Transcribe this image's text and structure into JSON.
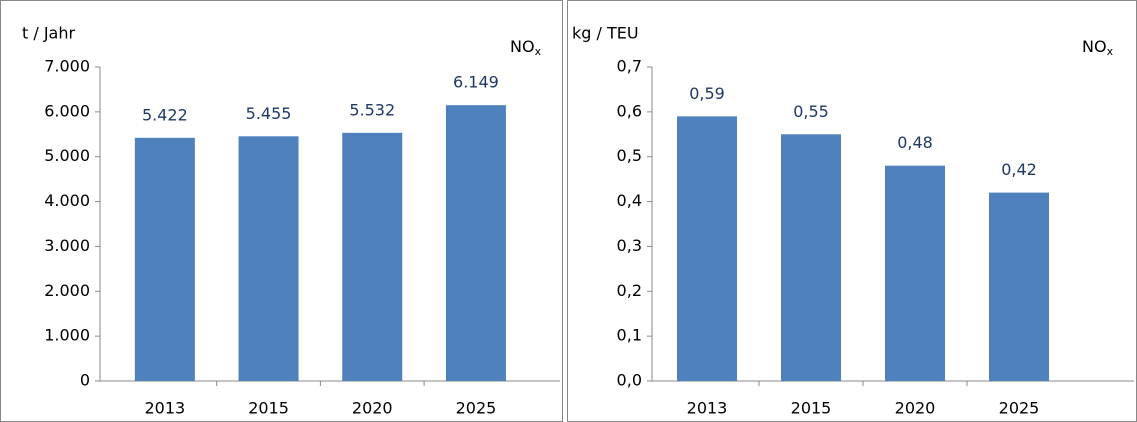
{
  "chart_data": [
    {
      "type": "bar",
      "y_label": "t / Jahr",
      "annotation": "NO",
      "annotation_sub": "x",
      "categories": [
        "2013",
        "2015",
        "2020",
        "2025"
      ],
      "values": [
        5422,
        5455,
        5532,
        6149
      ],
      "value_labels": [
        "5.422",
        "5.455",
        "5.532",
        "6.149"
      ],
      "color": "#4f81bd",
      "grid": false,
      "ylim": [
        0,
        7000
      ],
      "yticks": [
        0,
        {
          "value": 1000,
          "label": "1.000"
        },
        {
          "value": 2000,
          "label": "2.000"
        },
        {
          "value": 3000,
          "label": "3.000"
        },
        {
          "value": 4000,
          "label": "4.000"
        },
        {
          "value": 5000,
          "label": "5.000"
        },
        {
          "value": 6000,
          "label": "6.000"
        },
        {
          "value": 7000,
          "label": "7.000"
        }
      ]
    },
    {
      "type": "bar",
      "y_label": "kg  / TEU",
      "annotation": "NO",
      "annotation_sub": "x",
      "categories": [
        "2013",
        "2015",
        "2020",
        "2025"
      ],
      "values": [
        0.59,
        0.55,
        0.48,
        0.42
      ],
      "value_labels": [
        "0,59",
        "0,55",
        "0,48",
        "0,42"
      ],
      "color": "#4f81bd",
      "grid": false,
      "ylim": [
        0,
        0.7
      ],
      "yticks": [
        {
          "value": 0,
          "label": "0,0"
        },
        {
          "value": 0.1,
          "label": "0,1"
        },
        {
          "value": 0.2,
          "label": "0,2"
        },
        {
          "value": 0.3,
          "label": "0,3"
        },
        {
          "value": 0.4,
          "label": "0,4"
        },
        {
          "value": 0.5,
          "label": "0,5"
        },
        {
          "value": 0.6,
          "label": "0,6"
        },
        {
          "value": 0.7,
          "label": "0,7"
        }
      ]
    }
  ]
}
